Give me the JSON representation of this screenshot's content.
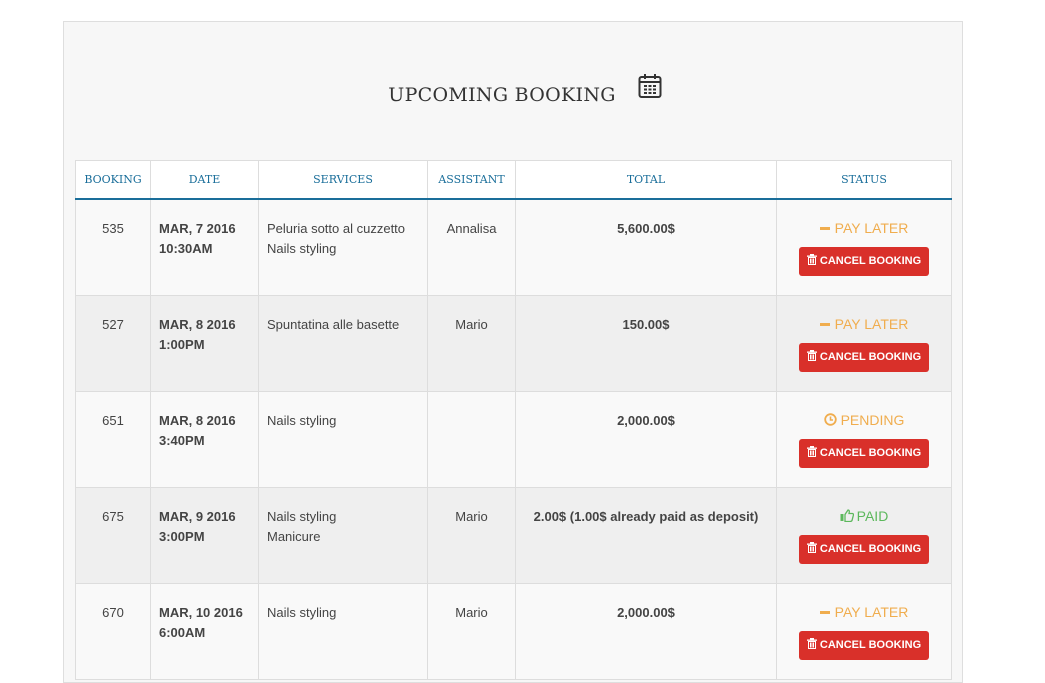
{
  "title": "UPCOMING BOOKING",
  "icons": {
    "title": "calendar-icon",
    "cancel": "trash-icon",
    "pay_later": "minus-icon",
    "pending": "clock-icon",
    "paid": "thumbs-up-icon"
  },
  "colors": {
    "header_text": "#1a6e9a",
    "pay_later": "#f0ad4e",
    "pending": "#f0ad4e",
    "paid": "#5cb85c",
    "cancel": "#d9302a"
  },
  "columns": [
    "BOOKING",
    "DATE",
    "SERVICES",
    "ASSISTANT",
    "TOTAL",
    "STATUS"
  ],
  "rows": [
    {
      "id": "535",
      "date": "MAR, 7 2016",
      "time": "10:30AM",
      "services": [
        "Peluria sotto al cuzzetto",
        "Nails styling"
      ],
      "assistant": "Annalisa",
      "total": "5,600.00$",
      "status": "PAY LATER",
      "status_type": "pay_later",
      "action": "CANCEL BOOKING"
    },
    {
      "id": "527",
      "date": "MAR, 8 2016",
      "time": "1:00PM",
      "services": [
        "Spuntatina alle basette"
      ],
      "assistant": "Mario",
      "total": "150.00$",
      "status": "PAY LATER",
      "status_type": "pay_later",
      "action": "CANCEL BOOKING"
    },
    {
      "id": "651",
      "date": "MAR, 8 2016",
      "time": "3:40PM",
      "services": [
        "Nails styling"
      ],
      "assistant": "",
      "total": "2,000.00$",
      "status": "PENDING",
      "status_type": "pending",
      "action": "CANCEL BOOKING"
    },
    {
      "id": "675",
      "date": "MAR, 9 2016",
      "time": "3:00PM",
      "services": [
        "Nails styling",
        "Manicure"
      ],
      "assistant": "Mario",
      "total": "2.00$ (1.00$ already paid as deposit)",
      "status": "PAID",
      "status_type": "paid",
      "action": "CANCEL BOOKING"
    },
    {
      "id": "670",
      "date": "MAR, 10 2016",
      "time": "6:00AM",
      "services": [
        "Nails styling"
      ],
      "assistant": "Mario",
      "total": "2,000.00$",
      "status": "PAY LATER",
      "status_type": "pay_later",
      "action": "CANCEL BOOKING"
    }
  ]
}
